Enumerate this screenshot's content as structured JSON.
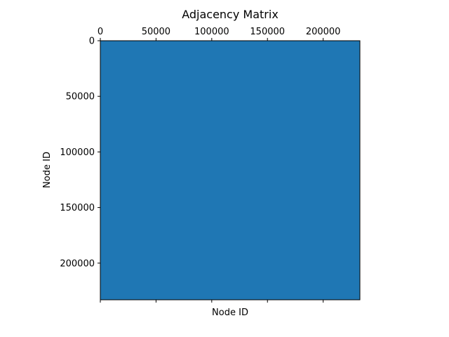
{
  "chart_data": {
    "type": "heatmap",
    "title": "Adjacency Matrix",
    "xlabel": "Node ID",
    "ylabel": "Node ID",
    "x_ticks": [
      0,
      50000,
      100000,
      150000,
      200000
    ],
    "y_ticks": [
      0,
      50000,
      100000,
      150000,
      200000
    ],
    "x_tick_labels": [
      "0",
      "50000",
      "100000",
      "150000",
      "200000"
    ],
    "y_tick_labels": [
      "0",
      "50000",
      "100000",
      "150000",
      "200000"
    ],
    "xlim": [
      0,
      232965
    ],
    "ylim": [
      0,
      232965
    ],
    "x_tick_position": "top",
    "y_axis_inverted": true,
    "fill_color": "#1f77b4",
    "grid": false,
    "matrix_fill": "dense"
  }
}
